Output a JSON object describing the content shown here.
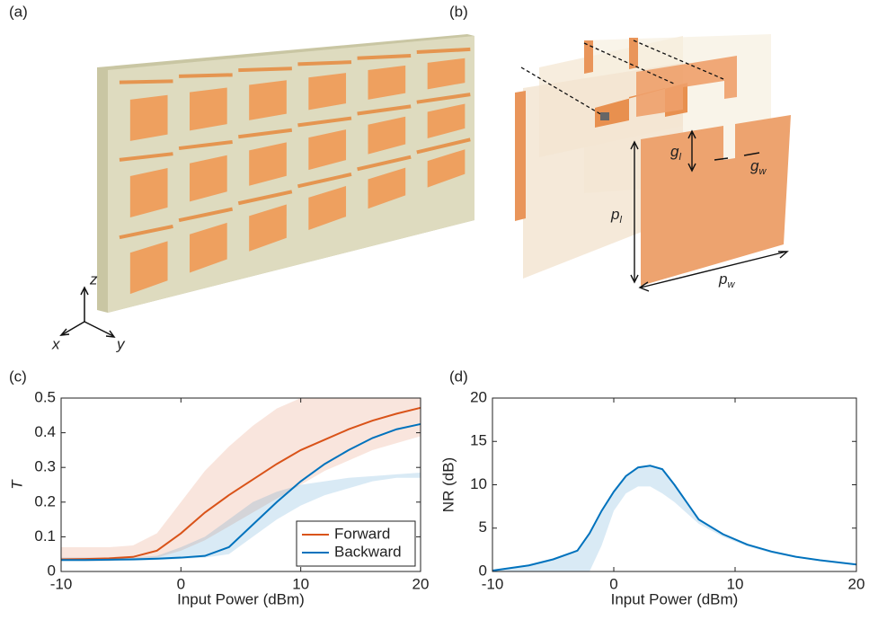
{
  "panels": {
    "a": "(a)",
    "b": "(b)",
    "c": "(c)",
    "d": "(d)"
  },
  "axes_triad": {
    "z": "z",
    "x": "x",
    "y": "y"
  },
  "dimensions": {
    "g_l": {
      "base": "g",
      "sub": "l"
    },
    "g_w": {
      "base": "g",
      "sub": "w"
    },
    "p_l": {
      "base": "p",
      "sub": "l"
    },
    "p_w": {
      "base": "p",
      "sub": "w"
    }
  },
  "chart_data": [
    {
      "type": "line",
      "x_label": "Input Power (dBm)",
      "y_label": "T",
      "x": [
        -10,
        -8,
        -6,
        -4,
        -2,
        0,
        2,
        4,
        6,
        8,
        10,
        12,
        14,
        16,
        18,
        20
      ],
      "series": [
        {
          "name": "Forward",
          "color": "#d95319",
          "values": [
            0.035,
            0.036,
            0.038,
            0.042,
            0.06,
            0.11,
            0.17,
            0.22,
            0.265,
            0.31,
            0.35,
            0.38,
            0.41,
            0.435,
            0.455,
            0.472
          ],
          "band_upper": [
            0.07,
            0.07,
            0.07,
            0.075,
            0.11,
            0.2,
            0.29,
            0.36,
            0.42,
            0.47,
            0.5,
            0.5,
            0.5,
            0.5,
            0.5,
            0.5
          ],
          "band_lower": [
            0.03,
            0.03,
            0.03,
            0.035,
            0.04,
            0.06,
            0.09,
            0.13,
            0.17,
            0.21,
            0.25,
            0.29,
            0.32,
            0.35,
            0.37,
            0.39
          ]
        },
        {
          "name": "Backward",
          "color": "#0072bd",
          "values": [
            0.033,
            0.033,
            0.034,
            0.035,
            0.037,
            0.04,
            0.045,
            0.07,
            0.135,
            0.2,
            0.26,
            0.31,
            0.35,
            0.385,
            0.41,
            0.425
          ],
          "band_upper": [
            0.04,
            0.04,
            0.04,
            0.04,
            0.045,
            0.07,
            0.1,
            0.15,
            0.2,
            0.23,
            0.25,
            0.26,
            0.27,
            0.275,
            0.28,
            0.285
          ],
          "band_lower": [
            0.03,
            0.03,
            0.03,
            0.03,
            0.033,
            0.036,
            0.04,
            0.05,
            0.1,
            0.15,
            0.19,
            0.22,
            0.24,
            0.26,
            0.27,
            0.27
          ]
        }
      ],
      "xlim": [
        -10,
        20
      ],
      "xticks": [
        -10,
        0,
        10,
        20
      ],
      "ylim": [
        0,
        0.5
      ],
      "yticks": [
        0,
        0.1,
        0.2,
        0.3,
        0.4,
        0.5
      ],
      "legend": "lower right"
    },
    {
      "type": "line",
      "x_label": "Input Power (dBm)",
      "y_label": "NR (dB)",
      "x": [
        -10,
        -7,
        -5,
        -3,
        -2,
        -1,
        0,
        1,
        2,
        3,
        4,
        5,
        7,
        9,
        11,
        13,
        15,
        17,
        20
      ],
      "series": [
        {
          "color": "#0072bd",
          "values": [
            0.1,
            0.7,
            1.4,
            2.4,
            4.4,
            7,
            9.2,
            11,
            12,
            12.2,
            11.8,
            10,
            6,
            4.3,
            3.1,
            2.3,
            1.7,
            1.3,
            0.8
          ],
          "band_upper": [
            0.1,
            0.7,
            1.4,
            2.4,
            4.4,
            7,
            9.2,
            11,
            12,
            12.2,
            11.8,
            10,
            6,
            4.3,
            3.1,
            2.3,
            1.7,
            1.3,
            0.8
          ],
          "band_lower": [
            0,
            0,
            0,
            0,
            0,
            3,
            7,
            9,
            9.8,
            9.8,
            9,
            8,
            5.5,
            4,
            2.9,
            2.1,
            1.6,
            1.2,
            0.8
          ]
        }
      ],
      "xlim": [
        -10,
        20
      ],
      "xticks": [
        -10,
        0,
        10,
        20
      ],
      "ylim": [
        0,
        20
      ],
      "yticks": [
        0,
        5,
        10,
        15,
        20
      ]
    }
  ]
}
